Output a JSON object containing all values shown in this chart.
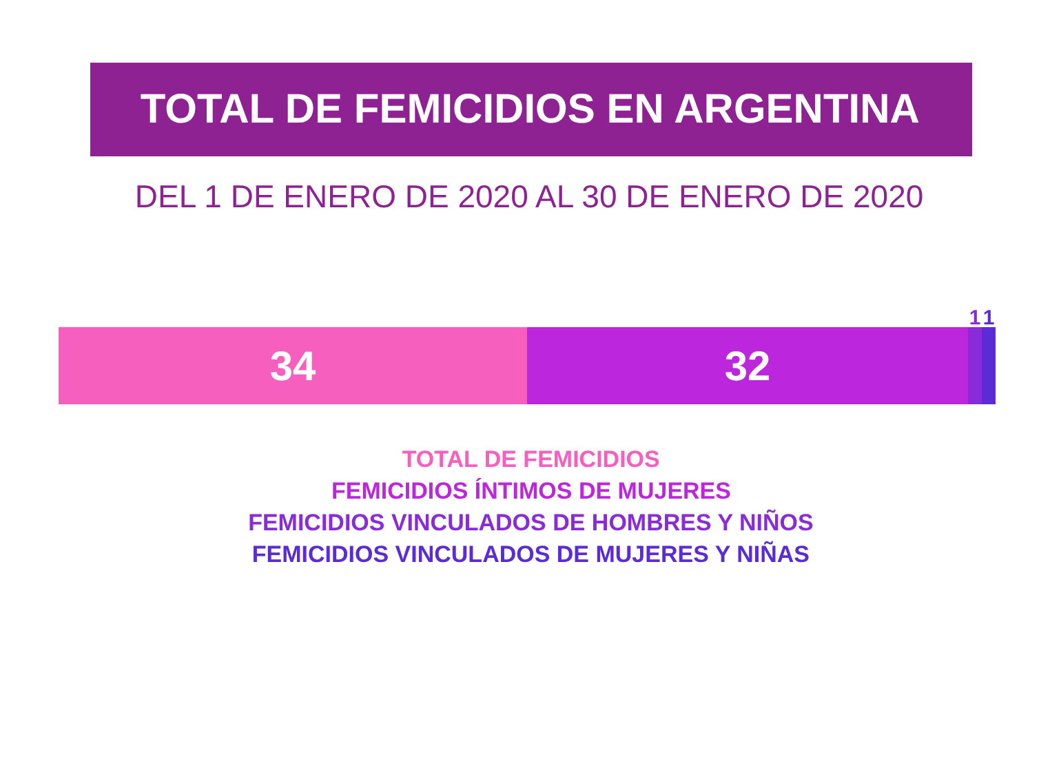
{
  "chart_data": {
    "type": "bar",
    "orientation": "horizontal",
    "stacked": true,
    "title": "TOTAL DE FEMICIDIOS EN ARGENTINA",
    "subtitle": "DEL 1 DE ENERO DE 2020 AL 30 DE ENERO DE 2020",
    "categories": [
      null
    ],
    "xlim": [
      0,
      68
    ],
    "tick_labels": false,
    "grid": false,
    "legend": "bottom",
    "data_labels": true,
    "series": [
      {
        "name": "TOTAL DE FEMICIDIOS",
        "color": "#f75fbe",
        "values": [
          34
        ]
      },
      {
        "name": "FEMICIDIOS ÍNTIMOS DE MUJERES",
        "color": "#bc27dd",
        "values": [
          32
        ]
      },
      {
        "name": "FEMICIDIOS VINCULADOS DE HOMBRES Y NIÑOS",
        "color": "#8a2bd9",
        "values": [
          1
        ]
      },
      {
        "name": "FEMICIDIOS VINCULADOS DE MUJERES Y NIÑAS",
        "color": "#5a2bd6",
        "values": [
          1
        ]
      }
    ]
  }
}
